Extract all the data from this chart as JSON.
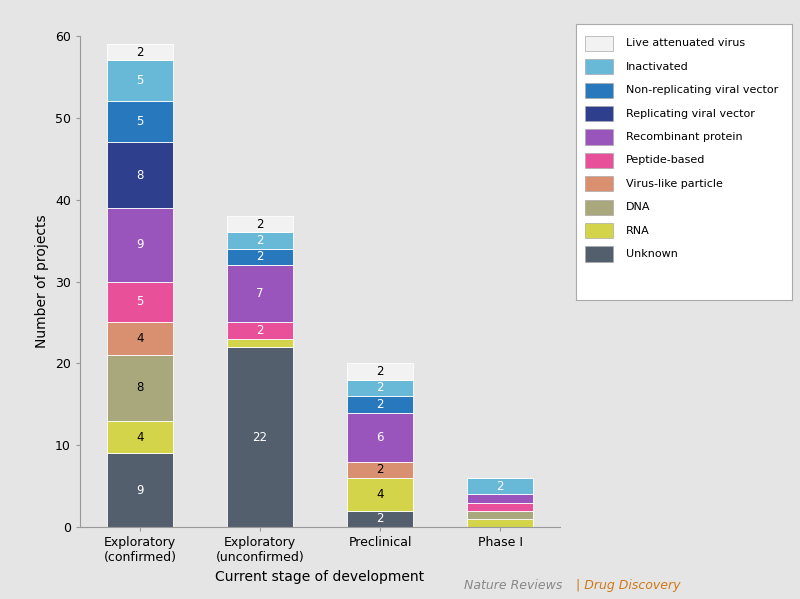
{
  "categories": [
    "Exploratory\n(confirmed)",
    "Exploratory\n(unconfirmed)",
    "Preclinical",
    "Phase I"
  ],
  "layers": [
    {
      "label": "Unknown",
      "color": "#545f6e",
      "values": [
        9,
        22,
        2,
        0
      ]
    },
    {
      "label": "RNA",
      "color": "#d4d44a",
      "values": [
        4,
        1,
        4,
        1
      ]
    },
    {
      "label": "DNA",
      "color": "#a8a87c",
      "values": [
        8,
        0,
        0,
        1
      ]
    },
    {
      "label": "Virus-like particle",
      "color": "#d89070",
      "values": [
        4,
        0,
        2,
        0
      ]
    },
    {
      "label": "Peptide-based",
      "color": "#e8509a",
      "values": [
        5,
        2,
        0,
        1
      ]
    },
    {
      "label": "Recombinant protein",
      "color": "#9955bb",
      "values": [
        9,
        7,
        6,
        1
      ]
    },
    {
      "label": "Replicating viral vector",
      "color": "#2e3f8e",
      "values": [
        8,
        0,
        0,
        0
      ]
    },
    {
      "label": "Non-replicating viral vector",
      "color": "#2878be",
      "values": [
        5,
        2,
        2,
        0
      ]
    },
    {
      "label": "Inactivated",
      "color": "#68b8d8",
      "values": [
        5,
        2,
        2,
        2
      ]
    },
    {
      "label": "Live attenuated virus",
      "color": "#f2f2f2",
      "values": [
        2,
        2,
        2,
        0
      ]
    }
  ],
  "ylim": [
    0,
    60
  ],
  "yticks": [
    0,
    10,
    20,
    30,
    40,
    50,
    60
  ],
  "ylabel": "Number of projects",
  "xlabel": "Current stage of development",
  "background_color": "#e5e5e5",
  "plot_bg_color": "#e5e5e5",
  "legend_order": [
    "Live attenuated virus",
    "Inactivated",
    "Non-replicating viral vector",
    "Replicating viral vector",
    "Recombinant protein",
    "Peptide-based",
    "Virus-like particle",
    "DNA",
    "RNA",
    "Unknown"
  ],
  "legend_colors": [
    "#f2f2f2",
    "#68b8d8",
    "#2878be",
    "#2e3f8e",
    "#9955bb",
    "#e8509a",
    "#d89070",
    "#a8a87c",
    "#d4d44a",
    "#545f6e"
  ],
  "footer_left": "Nature Reviews",
  "footer_right": " | Drug Discovery",
  "footer_color_left": "#888888",
  "footer_color_right": "#d07818"
}
